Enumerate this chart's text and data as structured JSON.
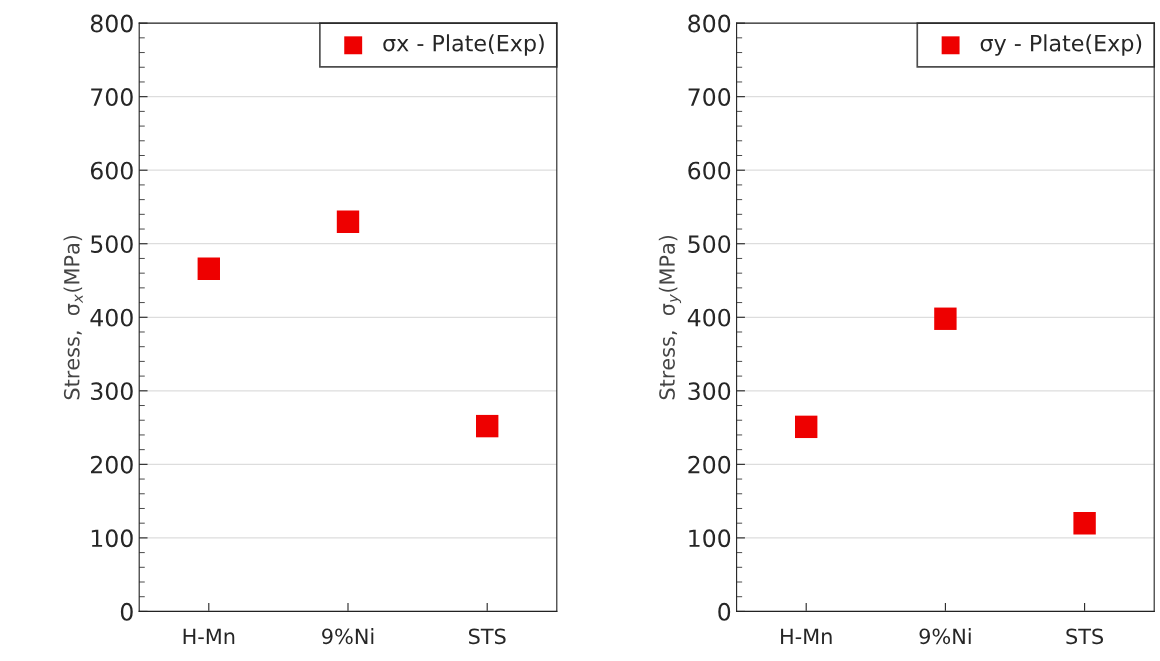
{
  "chart_data": [
    {
      "type": "scatter",
      "categories": [
        "H-Mn",
        "9%Ni",
        "STS"
      ],
      "ylabel": "Stress,  σ$_{x}$(MPa)",
      "ylim": [
        0,
        800
      ],
      "yticks": [
        0,
        100,
        200,
        300,
        400,
        500,
        600,
        700,
        800
      ],
      "grid": "y",
      "legend": "top right",
      "marker": "square",
      "series": [
        {
          "name": "σx - Plate(Exp)",
          "color": "#ee0000",
          "values": [
            466,
            530,
            252
          ]
        }
      ]
    },
    {
      "type": "scatter",
      "categories": [
        "H-Mn",
        "9%Ni",
        "STS"
      ],
      "ylabel": "Stress,  σ$_{y}$(MPa)",
      "ylim": [
        0,
        800
      ],
      "yticks": [
        0,
        100,
        200,
        300,
        400,
        500,
        600,
        700,
        800
      ],
      "grid": "y",
      "legend": "top right",
      "marker": "square",
      "series": [
        {
          "name": "σy - Plate(Exp)",
          "color": "#ee0000",
          "values": [
            251,
            398,
            120
          ]
        }
      ]
    }
  ]
}
